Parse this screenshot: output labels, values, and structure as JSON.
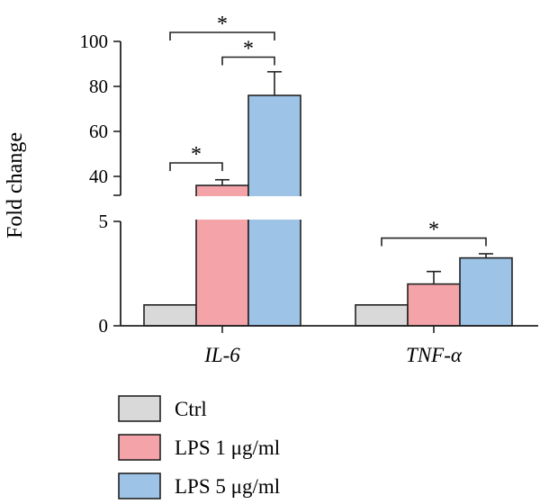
{
  "chart_data": {
    "type": "bar",
    "ylabel": "Fold change",
    "categories": [
      "IL-6",
      "TNF-α"
    ],
    "series": [
      {
        "name": "Ctrl",
        "color": "#d9d9d9",
        "values": [
          1,
          1
        ],
        "errors": [
          0,
          0
        ]
      },
      {
        "name": "LPS 1 μg/ml",
        "color": "#f4a3a8",
        "values": [
          36,
          2
        ],
        "errors": [
          2.5,
          0.6
        ]
      },
      {
        "name": "LPS 5 μg/ml",
        "color": "#9dc3e6",
        "values": [
          76,
          3.25
        ],
        "errors": [
          10.5,
          0.2
        ]
      }
    ],
    "axis": {
      "broken": true,
      "lower_range": [
        0,
        5
      ],
      "upper_range": [
        32,
        100
      ],
      "lower_ticks": [
        "0",
        "5"
      ],
      "upper_ticks": [
        "40",
        "60",
        "80",
        "100"
      ]
    },
    "significance": [
      {
        "category": "IL-6",
        "from_series": 0,
        "to_series": 1,
        "level": 46,
        "label": "*"
      },
      {
        "category": "IL-6",
        "from_series": 1,
        "to_series": 2,
        "level": 93,
        "label": "*"
      },
      {
        "category": "IL-6",
        "from_series": 0,
        "to_series": 2,
        "level": 104,
        "label": "*"
      },
      {
        "category": "TNF-α",
        "from_series": 0,
        "to_series": 2,
        "level": 4.2,
        "label": "*"
      }
    ],
    "legend": {
      "position": "bottom-left",
      "entries": [
        "Ctrl",
        "LPS 1 μg/ml",
        "LPS 5 μg/ml"
      ]
    }
  }
}
